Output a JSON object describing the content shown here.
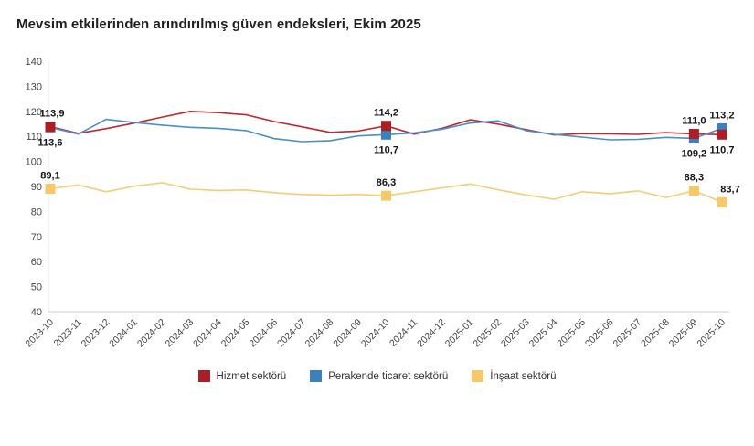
{
  "page": {
    "title": "Mevsim etkilerinden arındırılmış güven endeksleri, Ekim 2025"
  },
  "chart_data": {
    "type": "line",
    "title": "Mevsim etkilerinden arındırılmış güven endeksleri, Ekim 2025",
    "xlabel": "",
    "ylabel": "",
    "ylim": [
      40,
      140
    ],
    "yticks": [
      40,
      50,
      60,
      70,
      80,
      90,
      100,
      110,
      120,
      130,
      140
    ],
    "grid": "none",
    "legend_position": "bottom-center",
    "axis_color": "#d9d9d9",
    "x": [
      "2023-10",
      "2023-11",
      "2023-12",
      "2024-01",
      "2024-02",
      "2024-03",
      "2024-04",
      "2024-05",
      "2024-06",
      "2024-07",
      "2024-08",
      "2024-09",
      "2024-10",
      "2024-11",
      "2024-12",
      "2025-01",
      "2025-02",
      "2025-03",
      "2025-04",
      "2025-05",
      "2025-06",
      "2025-07",
      "2025-08",
      "2025-09",
      "2025-10"
    ],
    "highlighted_indices": [
      0,
      12,
      23,
      24
    ],
    "series": [
      {
        "name": "Hizmet sektörü",
        "color": "#ab1e24",
        "line_color": "#c1272d",
        "values": [
          113.9,
          111.2,
          113.1,
          115.3,
          117.7,
          120.0,
          119.5,
          118.6,
          115.9,
          113.8,
          111.6,
          112.1,
          114.2,
          110.9,
          113.2,
          116.6,
          114.9,
          112.7,
          110.6,
          111.1,
          111.0,
          110.8,
          111.5,
          111.0,
          110.7
        ],
        "point_labels": {
          "0": "113,9",
          "12": "114,2",
          "23": "111,0",
          "24": "110,7"
        }
      },
      {
        "name": "Perakende ticaret sektörü",
        "color": "#3b80bf",
        "line_color": "#4a8fc7",
        "values": [
          113.6,
          110.9,
          116.8,
          115.5,
          114.5,
          113.6,
          113.2,
          112.3,
          109.1,
          107.9,
          108.3,
          110.2,
          110.7,
          111.4,
          112.9,
          115.3,
          116.2,
          112.3,
          110.8,
          109.7,
          108.6,
          108.8,
          109.6,
          109.2,
          113.2
        ],
        "point_labels": {
          "0": "113,6",
          "12": "110,7",
          "23": "109,2",
          "24": "113,2"
        }
      },
      {
        "name": "İnşaat sektörü",
        "color": "#f6c868",
        "line_color": "#f6cd74",
        "values": [
          89.1,
          90.6,
          87.9,
          90.1,
          91.5,
          88.9,
          88.4,
          88.6,
          87.5,
          86.8,
          86.5,
          86.8,
          86.3,
          87.9,
          89.4,
          91.0,
          88.7,
          86.6,
          84.9,
          87.9,
          87.1,
          88.2,
          85.6,
          88.3,
          83.7
        ],
        "point_labels": {
          "0": "89,1",
          "12": "86,3",
          "23": "88,3",
          "24": "83,7"
        }
      }
    ]
  }
}
